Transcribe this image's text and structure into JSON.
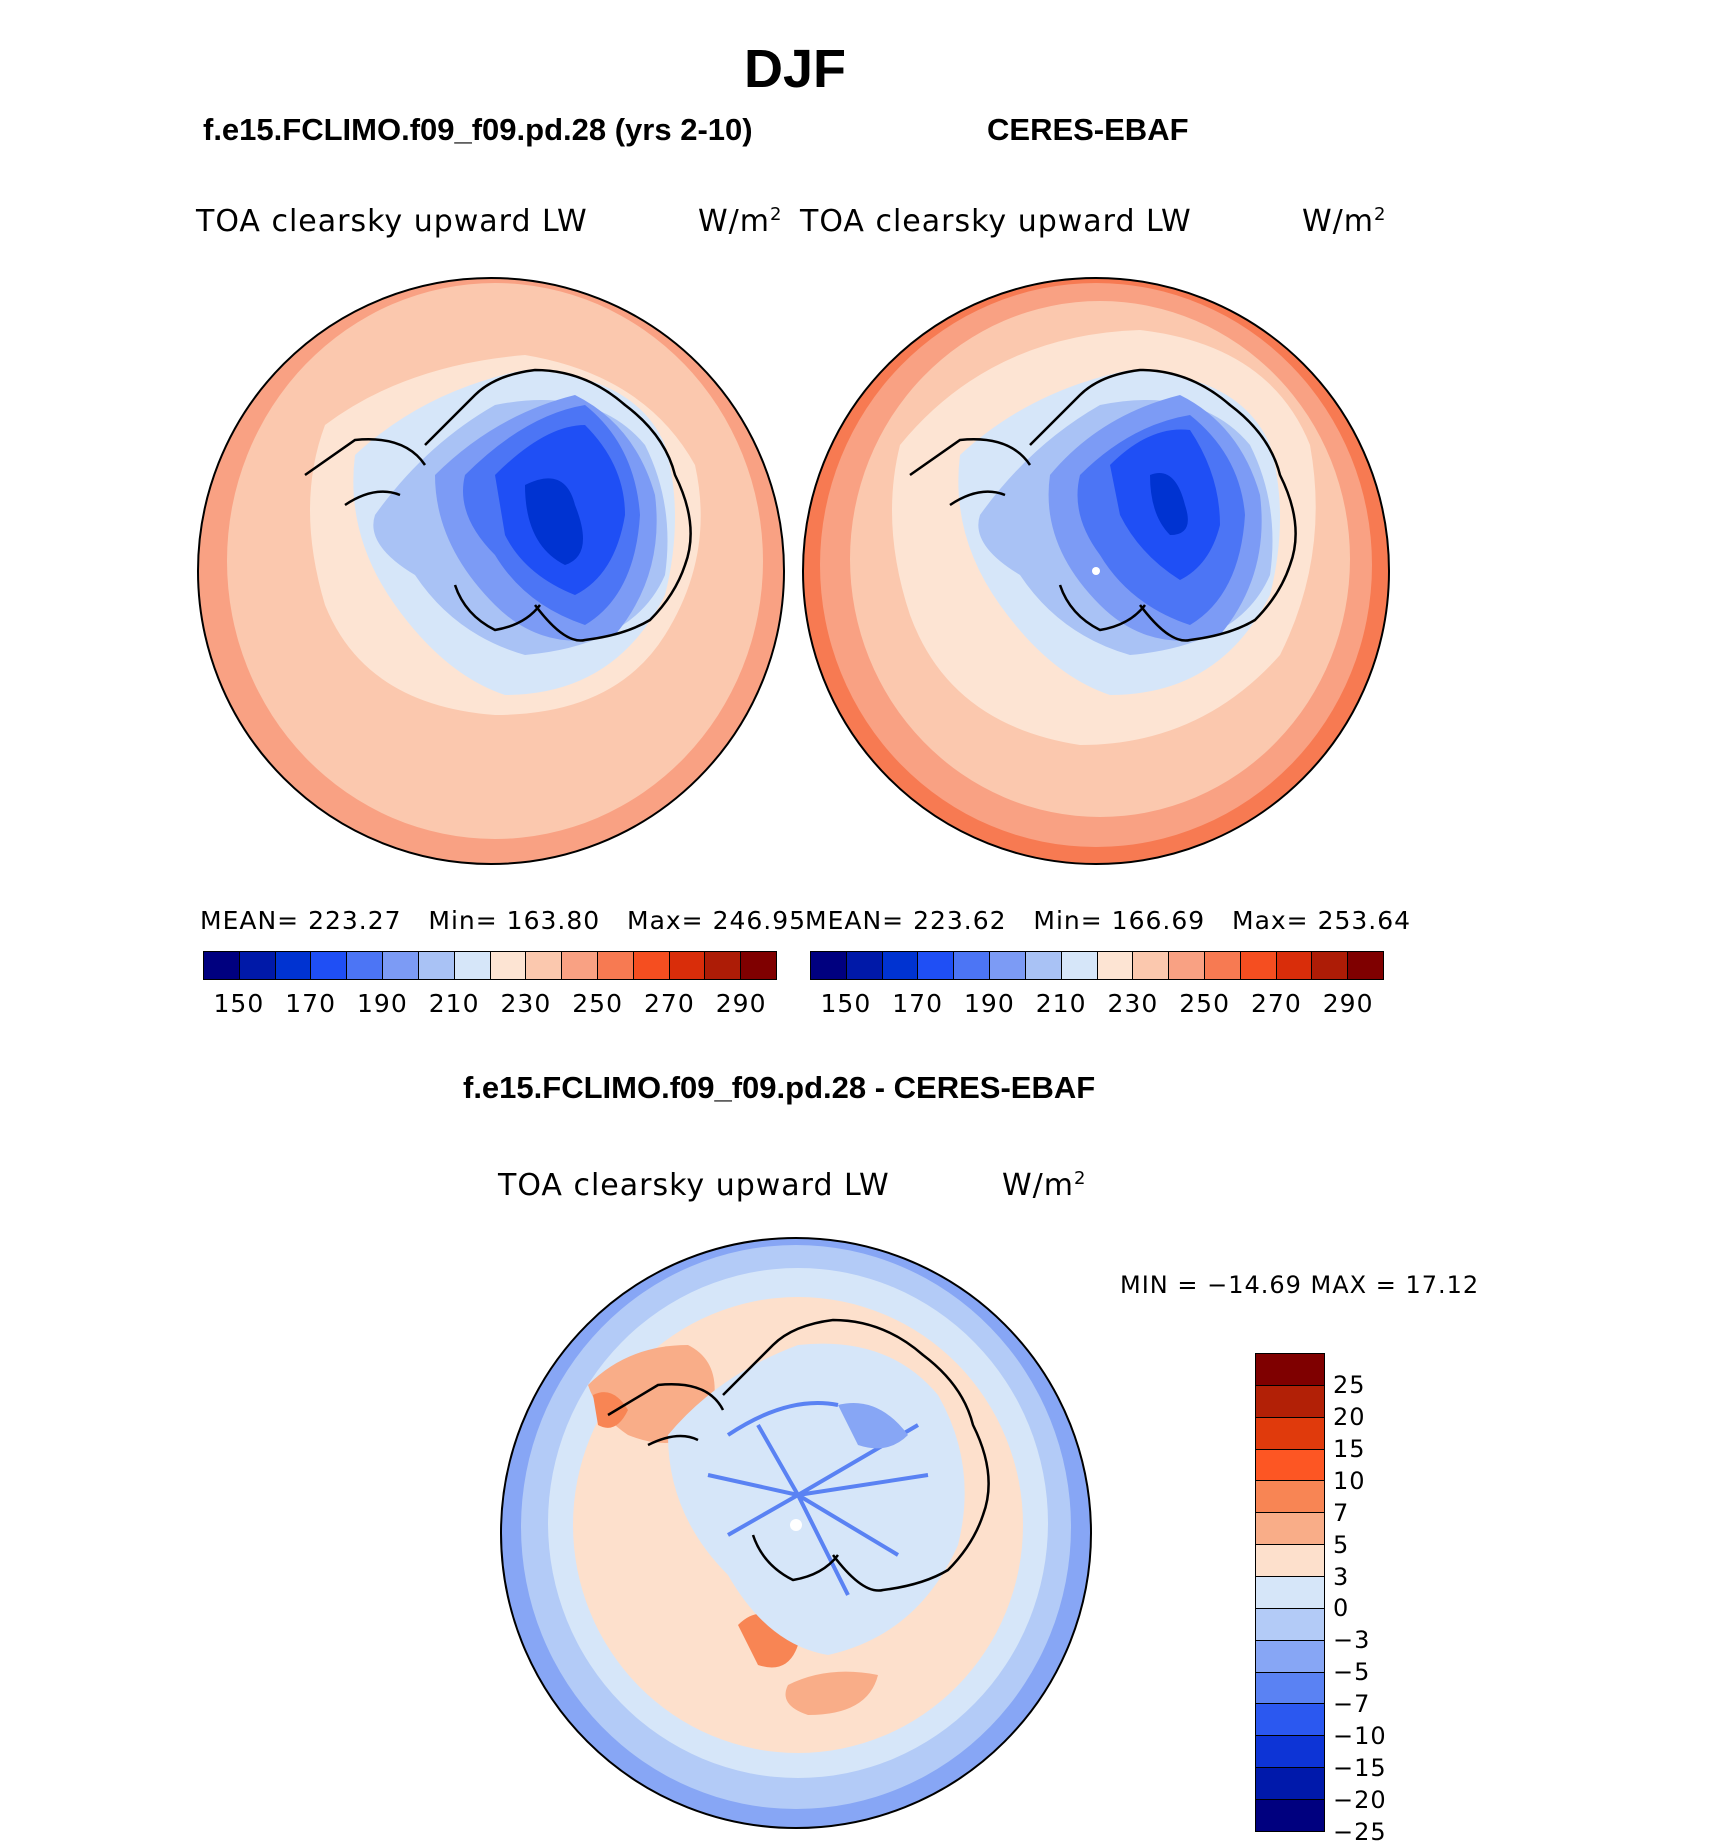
{
  "season": "DJF",
  "panels": {
    "model": {
      "title": "f.e15.FCLIMO.f09_f09.pd.28 (yrs 2-10)",
      "variable": "TOA clearsky upward LW",
      "units_base": "W/m",
      "units_exp": "2",
      "stats": {
        "mean_label": "MEAN=",
        "mean": "223.27",
        "min_label": "Min=",
        "min": "163.80",
        "max_label": "Max=",
        "max": "246.95"
      }
    },
    "obs": {
      "title": "CERES-EBAF",
      "variable": "TOA clearsky upward LW",
      "units_base": "W/m",
      "units_exp": "2",
      "stats": {
        "mean_label": "MEAN=",
        "mean": "223.62",
        "min_label": "Min=",
        "min": "166.69",
        "max_label": "Max=",
        "max": "253.64"
      }
    },
    "diff": {
      "title": "f.e15.FCLIMO.f09_f09.pd.28 - CERES-EBAF",
      "variable": "TOA clearsky upward LW",
      "units_base": "W/m",
      "units_exp": "2",
      "minmax": "MIN = −14.69  MAX =   17.12"
    }
  },
  "colorbar_abs": {
    "colors": [
      "#00007f",
      "#0019a8",
      "#0033d1",
      "#1f4ff5",
      "#4c75f5",
      "#7c9bf5",
      "#a9c2f5",
      "#d6e6f9",
      "#fde4d3",
      "#fbc8ae",
      "#f9a183",
      "#f77a52",
      "#f54e20",
      "#d92d0a",
      "#ad1c06",
      "#7f0000"
    ],
    "ticks": [
      "150",
      "170",
      "190",
      "210",
      "230",
      "250",
      "270",
      "290"
    ]
  },
  "colorbar_diff": {
    "colors": [
      "#7f0000",
      "#b22006",
      "#e03a0c",
      "#fd5623",
      "#f88554",
      "#f9ad88",
      "#fde0cc",
      "#d6e6f9",
      "#b3cbf7",
      "#87a6f5",
      "#5a82f3",
      "#2b58f0",
      "#0d34d6",
      "#0019ab",
      "#00007f"
    ],
    "ticks": [
      "25",
      "20",
      "15",
      "10",
      "7",
      "5",
      "3",
      "0",
      "−3",
      "−5",
      "−7",
      "−10",
      "−15",
      "−20",
      "−25"
    ]
  }
}
